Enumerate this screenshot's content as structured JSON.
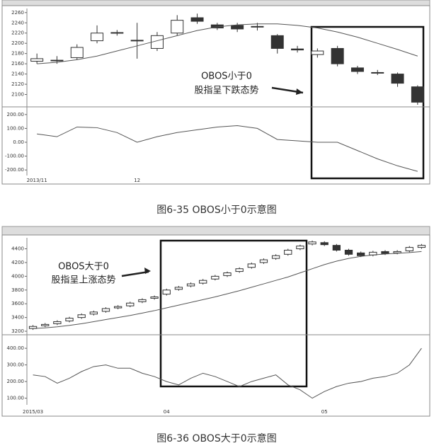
{
  "chart_data": [
    {
      "type": "candlestick",
      "annotation": [
        "OBOS小于0",
        "股指呈下跌态势"
      ],
      "caption": "图6-35   OBOS小于0示意图",
      "categories": [
        "2013/11",
        null,
        null,
        null,
        null,
        "12",
        null,
        null,
        null,
        null,
        null,
        null,
        null,
        null,
        null,
        null,
        null,
        null,
        null,
        null
      ],
      "open": [
        2165,
        2167,
        2172,
        2205,
        2221,
        2206,
        2190,
        2220,
        2250,
        2236,
        2235,
        2233,
        2215,
        2189,
        2178,
        2190,
        2152,
        2143,
        2140,
        2115
      ],
      "high": [
        2180,
        2175,
        2198,
        2235,
        2226,
        2240,
        2222,
        2255,
        2258,
        2240,
        2240,
        2240,
        2218,
        2195,
        2190,
        2195,
        2156,
        2148,
        2143,
        2118
      ],
      "low": [
        2160,
        2160,
        2168,
        2200,
        2215,
        2170,
        2185,
        2215,
        2238,
        2226,
        2222,
        2225,
        2180,
        2182,
        2172,
        2155,
        2140,
        2138,
        2115,
        2080
      ],
      "close": [
        2170,
        2166,
        2192,
        2220,
        2220,
        2205,
        2215,
        2245,
        2243,
        2230,
        2228,
        2232,
        2190,
        2187,
        2185,
        2160,
        2145,
        2142,
        2122,
        2085
      ],
      "ma": [
        2160,
        2163,
        2168,
        2175,
        2185,
        2195,
        2205,
        2215,
        2225,
        2232,
        2236,
        2238,
        2238,
        2235,
        2230,
        2222,
        2212,
        2200,
        2188,
        2175
      ],
      "ylim": [
        2080,
        2268
      ],
      "yticks": [
        2100,
        2120,
        2140,
        2160,
        2180,
        2200,
        2220,
        2240,
        2260
      ],
      "obos": {
        "values": [
          60,
          40,
          110,
          105,
          70,
          0,
          40,
          70,
          90,
          110,
          120,
          100,
          20,
          10,
          0,
          0,
          -60,
          -120,
          -170,
          -210
        ],
        "ylim": [
          -240,
          240
        ],
        "yticks": [
          {
            "value": -200,
            "label": "-200.00"
          },
          {
            "value": -100,
            "label": "-100.00"
          },
          {
            "value": 0,
            "label": "0.00"
          },
          {
            "value": 100,
            "label": "100.00"
          },
          {
            "value": 200,
            "label": "200.00"
          }
        ]
      },
      "up_color": "#ffffff",
      "down_color": "#333333",
      "line_color": "#555555"
    },
    {
      "type": "candlestick",
      "annotation": [
        "OBOS大于0",
        "股指呈上涨态势"
      ],
      "caption": "图6-36   OBOS大于0示意图",
      "categories": [
        "2015/03",
        null,
        null,
        null,
        null,
        null,
        null,
        null,
        null,
        null,
        null,
        "04",
        null,
        null,
        null,
        null,
        null,
        null,
        null,
        null,
        null,
        null,
        null,
        null,
        "05",
        null,
        null,
        null,
        null,
        null,
        null,
        null,
        null
      ],
      "open": [
        3240,
        3280,
        3310,
        3350,
        3400,
        3450,
        3490,
        3540,
        3570,
        3630,
        3680,
        3740,
        3810,
        3860,
        3900,
        3960,
        4010,
        4070,
        4130,
        4200,
        4260,
        4320,
        4400,
        4470,
        4490,
        4450,
        4380,
        4340,
        4310,
        4360,
        4340,
        4370,
        4420
      ],
      "high": [
        3290,
        3320,
        3360,
        3410,
        3460,
        3500,
        3550,
        3580,
        3630,
        3680,
        3720,
        3820,
        3860,
        3910,
        3960,
        4020,
        4070,
        4130,
        4200,
        4260,
        4320,
        4400,
        4460,
        4520,
        4510,
        4470,
        4400,
        4360,
        4370,
        4380,
        4380,
        4440,
        4470
      ],
      "low": [
        3220,
        3260,
        3290,
        3330,
        3380,
        3430,
        3470,
        3520,
        3550,
        3610,
        3660,
        3720,
        3790,
        3840,
        3880,
        3940,
        3990,
        4050,
        4110,
        4180,
        4240,
        4300,
        4380,
        4450,
        4440,
        4360,
        4300,
        4280,
        4290,
        4310,
        4320,
        4350,
        4400
      ],
      "close": [
        3270,
        3300,
        3340,
        3390,
        3440,
        3480,
        3530,
        3560,
        3610,
        3660,
        3700,
        3800,
        3840,
        3890,
        3940,
        4000,
        4050,
        4110,
        4180,
        4240,
        4300,
        4380,
        4440,
        4500,
        4460,
        4380,
        4320,
        4300,
        4350,
        4330,
        4360,
        4420,
        4450
      ],
      "ma": [
        3240,
        3250,
        3265,
        3285,
        3310,
        3340,
        3370,
        3400,
        3430,
        3465,
        3500,
        3540,
        3580,
        3620,
        3660,
        3700,
        3745,
        3790,
        3840,
        3890,
        3940,
        3990,
        4050,
        4110,
        4170,
        4220,
        4260,
        4290,
        4310,
        4325,
        4335,
        4345,
        4360
      ],
      "ylim": [
        3180,
        4560
      ],
      "yticks": [
        3200,
        3400,
        3600,
        3800,
        4000,
        4200,
        4400
      ],
      "obos": {
        "values": [
          240,
          230,
          190,
          220,
          260,
          290,
          300,
          280,
          280,
          250,
          230,
          200,
          180,
          220,
          250,
          230,
          200,
          170,
          200,
          220,
          240,
          180,
          150,
          100,
          140,
          170,
          190,
          200,
          220,
          230,
          250,
          300,
          400
        ],
        "ylim": [
          60,
          460
        ],
        "yticks": [
          {
            "value": 100,
            "label": "100.00"
          },
          {
            "value": 200,
            "label": "200.00"
          },
          {
            "value": 300,
            "label": "300.00"
          },
          {
            "value": 400,
            "label": "400.00"
          }
        ]
      },
      "up_color": "#ffffff",
      "down_color": "#333333",
      "line_color": "#555555"
    }
  ]
}
